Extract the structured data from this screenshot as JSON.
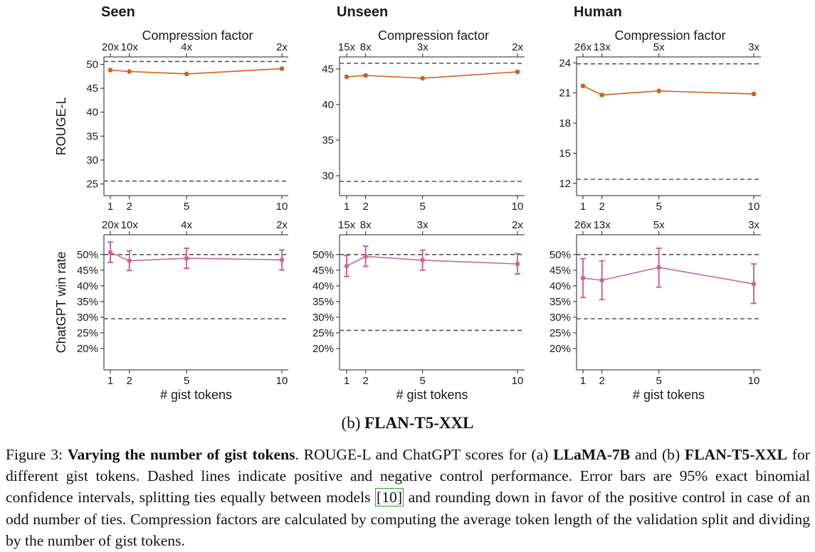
{
  "chart_data": [
    {
      "type": "line",
      "panel": "Seen",
      "metric": "ROUGE-L",
      "title": "Seen",
      "top_axis_label": "Compression factor",
      "ylabel": "ROUGE-L",
      "x": [
        1,
        2,
        5,
        10
      ],
      "top_tick_labels": [
        "20x",
        "10x",
        "4x",
        "2x"
      ],
      "ylim": [
        24.5,
        52
      ],
      "yticks": [
        25,
        30,
        35,
        40,
        45,
        50
      ],
      "ytick_suffix": "",
      "values": [
        48.8,
        48.5,
        48.0,
        49.1
      ],
      "positive_control": 50.6,
      "negative_control": 25.6,
      "color": "#d0601a"
    },
    {
      "type": "line",
      "panel": "Unseen",
      "metric": "ROUGE-L",
      "title": "Unseen",
      "top_axis_label": "Compression factor",
      "ylabel": "",
      "x": [
        1,
        2,
        5,
        10
      ],
      "top_tick_labels": [
        "15x",
        "8x",
        "3x",
        "2x"
      ],
      "ylim": [
        28.5,
        47
      ],
      "yticks": [
        30,
        35,
        40,
        45
      ],
      "ytick_suffix": "",
      "values": [
        43.9,
        44.1,
        43.7,
        44.6
      ],
      "positive_control": 45.8,
      "negative_control": 29.2,
      "color": "#d0601a"
    },
    {
      "type": "line",
      "panel": "Human",
      "metric": "ROUGE-L",
      "title": "Human",
      "top_axis_label": "Compression factor",
      "ylabel": "",
      "x": [
        1,
        2,
        5,
        10
      ],
      "top_tick_labels": [
        "26x",
        "13x",
        "5x",
        "3x"
      ],
      "ylim": [
        11.7,
        24.8
      ],
      "yticks": [
        12,
        15,
        18,
        21,
        24
      ],
      "ytick_suffix": "",
      "values": [
        21.7,
        20.8,
        21.2,
        20.9
      ],
      "positive_control": 23.9,
      "negative_control": 12.4,
      "color": "#d0601a"
    },
    {
      "type": "line",
      "panel": "Seen",
      "metric": "ChatGPT win rate",
      "top_tick_labels": [
        "20x",
        "10x",
        "4x",
        "2x"
      ],
      "xlabel": "# gist tokens",
      "ylabel": "ChatGPT win rate",
      "x": [
        1,
        2,
        5,
        10
      ],
      "ylim": [
        15,
        57
      ],
      "yticks": [
        20,
        25,
        30,
        35,
        40,
        45,
        50
      ],
      "ytick_suffix": "%",
      "values": [
        50.7,
        48.0,
        48.8,
        48.3
      ],
      "ci_low": [
        47.5,
        44.9,
        45.6,
        45.1
      ],
      "ci_high": [
        54.0,
        51.2,
        52.0,
        51.5
      ],
      "positive_control": 50,
      "negative_control": 29.5,
      "color": "#c8679b"
    },
    {
      "type": "line",
      "panel": "Unseen",
      "metric": "ChatGPT win rate",
      "top_tick_labels": [
        "15x",
        "8x",
        "3x",
        "2x"
      ],
      "xlabel": "# gist tokens",
      "ylabel": "",
      "x": [
        1,
        2,
        5,
        10
      ],
      "ylim": [
        15,
        57
      ],
      "yticks": [
        20,
        25,
        30,
        35,
        40,
        45,
        50
      ],
      "ytick_suffix": "%",
      "values": [
        46.3,
        49.4,
        48.2,
        47.0
      ],
      "ci_low": [
        43.0,
        46.2,
        45.0,
        43.8
      ],
      "ci_high": [
        49.7,
        52.7,
        51.4,
        50.3
      ],
      "positive_control": 50,
      "negative_control": 25.8,
      "color": "#c8679b"
    },
    {
      "type": "line",
      "panel": "Human",
      "metric": "ChatGPT win rate",
      "top_tick_labels": [
        "26x",
        "13x",
        "5x",
        "3x"
      ],
      "xlabel": "# gist tokens",
      "ylabel": "",
      "x": [
        1,
        2,
        5,
        10
      ],
      "ylim": [
        15,
        57
      ],
      "yticks": [
        20,
        25,
        30,
        35,
        40,
        45,
        50
      ],
      "ytick_suffix": "%",
      "values": [
        42.5,
        41.8,
        45.9,
        40.6
      ],
      "ci_low": [
        36.3,
        35.6,
        39.6,
        34.4
      ],
      "ci_high": [
        48.7,
        48.0,
        52.0,
        47.0
      ],
      "positive_control": 50,
      "negative_control": 29.5,
      "color": "#c8679b"
    }
  ],
  "subcaption": {
    "prefix": "(b) ",
    "model": "FLAN-T5-XXL"
  },
  "caption": {
    "label": "Figure 3: ",
    "title": "Varying the number of gist tokens",
    "p1": ". ROUGE-L and ChatGPT scores for (a) ",
    "m1": "LLaMA-7B",
    "p2": " and (b) ",
    "m2": "FLAN-T5-XXL",
    "p3": " for different gist tokens. Dashed lines indicate positive and negative control performance. Error bars are 95% exact binomial confidence intervals, splitting ties equally between models ",
    "cite": "[10]",
    "p4": " and rounding down in favor of the positive control in case of an odd number of ties. Compression factors are calculated by computing the average token length of the validation split and dividing by the number of gist tokens."
  }
}
